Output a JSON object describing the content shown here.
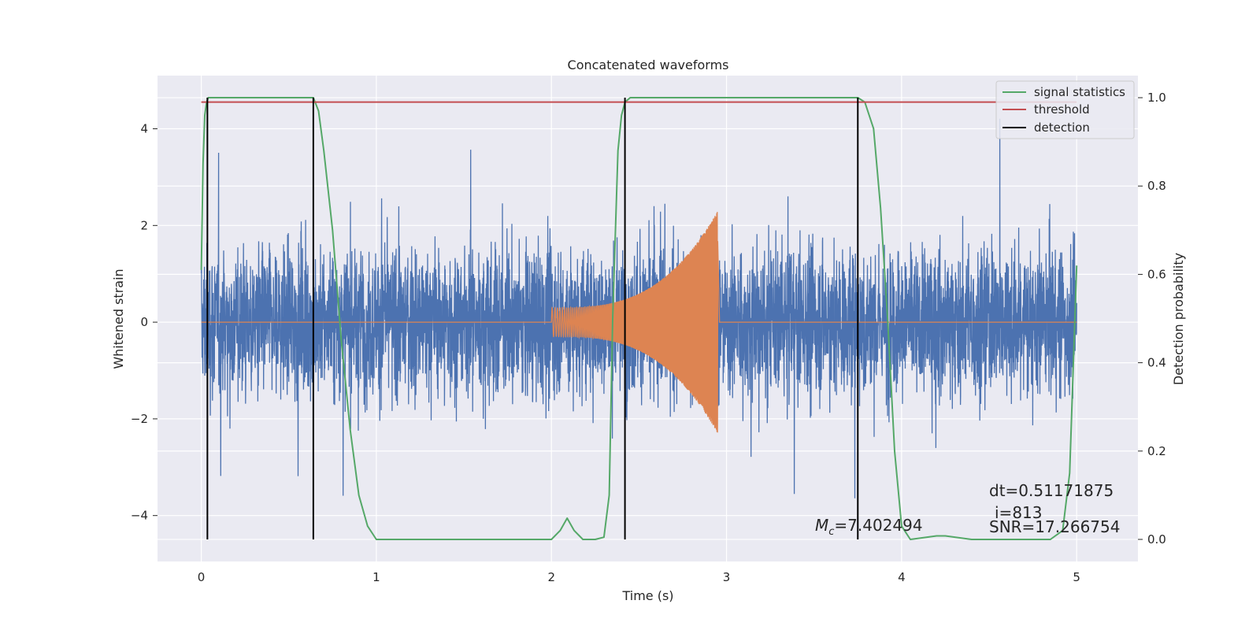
{
  "chart_data": {
    "type": "line",
    "title": "Concatenated waveforms",
    "xlabel": "Time (s)",
    "ylabel": "Whitened strain",
    "ylabel_right": "Detection probability",
    "xlim": [
      -0.25,
      5.35
    ],
    "ylim": [
      -4.95,
      5.1
    ],
    "ylim_right": [
      -0.05,
      1.05
    ],
    "x_ticks": [
      "0",
      "1",
      "2",
      "3",
      "4",
      "5"
    ],
    "y_ticks": [
      "4",
      "2",
      "0",
      "−2",
      "−4"
    ],
    "y_ticks_right": [
      "1.0",
      "0.8",
      "0.6",
      "0.4",
      "0.2",
      "0.0"
    ],
    "grid": true,
    "legend_position": "top-right",
    "colors": {
      "background": "#eaeaf2",
      "grid": "#ffffff",
      "strain": "#4c72b0",
      "template": "#dd8452",
      "signal_statistics": "#55a868",
      "threshold": "#c44e52",
      "detection": "#000000"
    },
    "series": [
      {
        "name": "signal statistics",
        "axis": "right",
        "x": [
          0.0,
          0.01,
          0.02,
          0.03,
          0.04,
          0.06,
          0.1,
          0.3,
          0.6,
          0.64,
          0.67,
          0.7,
          0.75,
          0.8,
          0.85,
          0.9,
          0.95,
          1.0,
          1.1,
          1.5,
          1.9,
          2.0,
          2.05,
          2.09,
          2.13,
          2.18,
          2.25,
          2.3,
          2.33,
          2.35,
          2.38,
          2.4,
          2.42,
          2.45,
          2.5,
          3.0,
          3.6,
          3.72,
          3.75,
          3.79,
          3.84,
          3.88,
          3.92,
          3.96,
          4.0,
          4.05,
          4.2,
          4.25,
          4.4,
          4.85,
          4.92,
          4.96,
          5.0
        ],
        "y": [
          0.61,
          0.85,
          0.96,
          0.99,
          1.0,
          1.0,
          1.0,
          1.0,
          1.0,
          1.0,
          0.97,
          0.88,
          0.7,
          0.45,
          0.25,
          0.1,
          0.03,
          0.0,
          0.0,
          0.0,
          0.0,
          0.0,
          0.02,
          0.048,
          0.02,
          0.0,
          0.0,
          0.005,
          0.1,
          0.5,
          0.88,
          0.96,
          0.99,
          1.0,
          1.0,
          1.0,
          1.0,
          1.0,
          1.0,
          0.99,
          0.93,
          0.75,
          0.5,
          0.2,
          0.03,
          0.0,
          0.008,
          0.008,
          0.0,
          0.0,
          0.02,
          0.15,
          0.62
        ]
      },
      {
        "name": "threshold",
        "axis": "right",
        "x": [
          0.0,
          5.0
        ],
        "y": [
          0.99,
          0.99
        ]
      },
      {
        "name": "detection",
        "axis": "right",
        "type": "vlines",
        "x": [
          0.035,
          0.64,
          2.42,
          3.75
        ],
        "y_range": [
          0.0,
          1.0
        ]
      },
      {
        "axis": "left",
        "type": "noise",
        "x_range": [
          0.0,
          5.0
        ],
        "typical_abs": 0.8,
        "max_abs": 4.5
      },
      {
        "axis": "left",
        "type": "chirp",
        "x_range": [
          2.0,
          2.95
        ],
        "amplitude_start": 0.3,
        "amplitude_end": 2.3
      }
    ],
    "annotations": {
      "mc_symbol": "M",
      "mc_sub": "c",
      "mc_value": "=7.402494",
      "dt": "dt=0.51171875",
      "i": "i=813",
      "snr": "SNR=17.266754"
    }
  }
}
